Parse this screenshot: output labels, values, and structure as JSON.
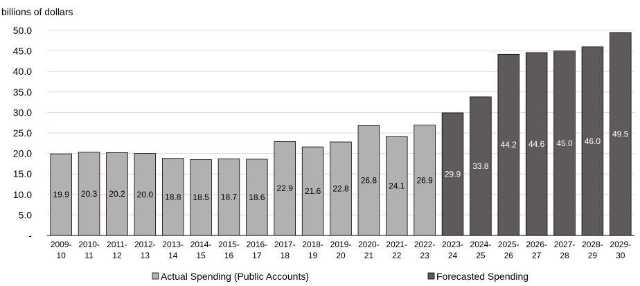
{
  "chart_data": {
    "type": "bar",
    "title": "",
    "xlabel": "",
    "ylabel": "billions of dollars",
    "ylim": [
      0,
      50
    ],
    "yticks": [
      "-",
      "5.0",
      "10.0",
      "15.0",
      "20.0",
      "25.0",
      "30.0",
      "35.0",
      "40.0",
      "45.0",
      "50.0"
    ],
    "grid": true,
    "legend_placement": "bottom",
    "categories": [
      [
        "2009-",
        "10"
      ],
      [
        "2010-",
        "11"
      ],
      [
        "2011-",
        "12"
      ],
      [
        "2012-",
        "13"
      ],
      [
        "2013-",
        "14"
      ],
      [
        "2014-",
        "15"
      ],
      [
        "2015-",
        "16"
      ],
      [
        "2016-",
        "17"
      ],
      [
        "2017-",
        "18"
      ],
      [
        "2018-",
        "19"
      ],
      [
        "2019-",
        "20"
      ],
      [
        "2020-",
        "21"
      ],
      [
        "2021-",
        "22"
      ],
      [
        "2022-",
        "23"
      ],
      [
        "2023-",
        "24"
      ],
      [
        "2024-",
        "25"
      ],
      [
        "2025-",
        "26"
      ],
      [
        "2026-",
        "27"
      ],
      [
        "2027-",
        "28"
      ],
      [
        "2028-",
        "29"
      ],
      [
        "2029-",
        "30"
      ]
    ],
    "values": [
      19.9,
      20.3,
      20.2,
      20.0,
      18.8,
      18.5,
      18.7,
      18.6,
      22.9,
      21.6,
      22.8,
      26.8,
      24.1,
      26.9,
      29.9,
      33.8,
      44.2,
      44.6,
      45.0,
      46.0,
      49.5
    ],
    "value_labels": [
      "19.9",
      "20.3",
      "20.2",
      "20.0",
      "18.8",
      "18.5",
      "18.7",
      "18.6",
      "22.9",
      "21.6",
      "22.8",
      "26.8",
      "24.1",
      "26.9",
      "29.9",
      "33.8",
      "44.2",
      "44.6",
      "45.0",
      "46.0",
      "49.5"
    ],
    "series_kind": [
      "actual",
      "actual",
      "actual",
      "actual",
      "actual",
      "actual",
      "actual",
      "actual",
      "actual",
      "actual",
      "actual",
      "actual",
      "actual",
      "actual",
      "forecast",
      "forecast",
      "forecast",
      "forecast",
      "forecast",
      "forecast",
      "forecast"
    ],
    "series": [
      {
        "key": "actual",
        "name": "Actual Spending (Public Accounts)",
        "color": "#b3b0b0",
        "label_color": "#000000"
      },
      {
        "key": "forecast",
        "name": "Forecasted Spending",
        "color": "#5f5a5a",
        "label_color": "#ffffff"
      }
    ],
    "colors": {
      "grid": "#d9d9d9",
      "bar_stroke": "#000000"
    }
  }
}
